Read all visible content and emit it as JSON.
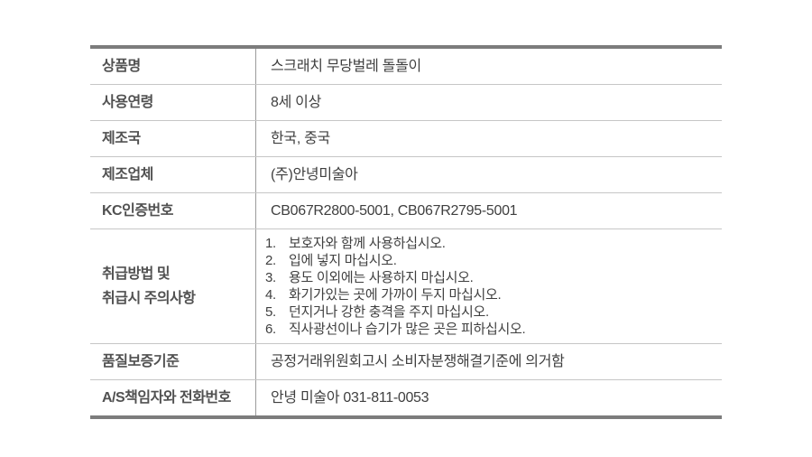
{
  "page": {
    "background": "#ffffff"
  },
  "table": {
    "heavy_border_color": "#7c7c7c",
    "row_divider_color": "#c6c6c6",
    "column_divider_color": "#9c9c9c",
    "label_color": "#515151",
    "value_color": "#3f3f3f",
    "rows": [
      {
        "label": "상품명",
        "value": "스크래치 무당벌레 돌돌이"
      },
      {
        "label": "사용연령",
        "value": "8세 이상"
      },
      {
        "label": "제조국",
        "value": "한국, 중국"
      },
      {
        "label": "제조업체",
        "value": "(주)안녕미술아"
      },
      {
        "label": "KC인증번호",
        "value": "CB067R2800-5001, CB067R2795-5001"
      },
      {
        "label": "취급방법 및\n취급시 주의사항",
        "value_list": [
          {
            "num": "1.",
            "text": "보호자와 함께 사용하십시오."
          },
          {
            "num": "2.",
            "text": "입에 넣지 마십시오."
          },
          {
            "num": "3.",
            "text": "용도 이외에는 사용하지 마십시오."
          },
          {
            "num": "4.",
            "text": "화기가있는 곳에 가까이 두지 마십시오."
          },
          {
            "num": "5.",
            "text": "던지거나 강한 충격을 주지 마십시오."
          },
          {
            "num": "6.",
            "text": "직사광선이나 습기가 많은 곳은 피하십시오."
          }
        ]
      },
      {
        "label": "품질보증기준",
        "value": "공정거래위원회고시 소비자분쟁해결기준에 의거함"
      },
      {
        "label": "A/S책임자와 전화번호",
        "value": "안녕 미술아 031-811-0053"
      }
    ]
  }
}
